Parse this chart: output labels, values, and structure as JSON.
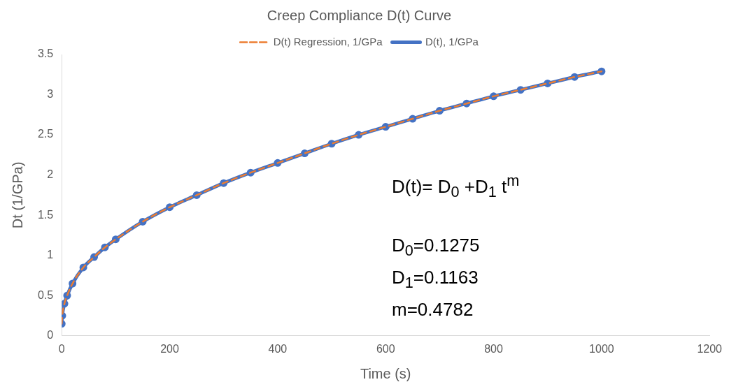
{
  "chart_data": {
    "type": "line",
    "title": "Creep Compliance D(t) Curve",
    "xlabel": "Time (s)",
    "ylabel": "Dt (1/GPa)",
    "x": [
      0,
      1,
      5,
      10,
      20,
      40,
      60,
      80,
      100,
      150,
      200,
      250,
      300,
      350,
      400,
      450,
      500,
      550,
      600,
      650,
      700,
      750,
      800,
      850,
      900,
      950,
      1000
    ],
    "series": [
      {
        "name": "D(t), 1/GPa",
        "color": "#4472c4",
        "marker": "circle",
        "line_style": "solid",
        "values": [
          0.15,
          0.25,
          0.4,
          0.5,
          0.65,
          0.85,
          0.98,
          1.1,
          1.2,
          1.42,
          1.6,
          1.75,
          1.9,
          2.03,
          2.15,
          2.27,
          2.39,
          2.5,
          2.6,
          2.7,
          2.8,
          2.89,
          2.98,
          3.06,
          3.14,
          3.22,
          3.29
        ]
      },
      {
        "name": "D(t) Regression, 1/GPa",
        "color": "#ed7d31",
        "marker": "none",
        "line_style": "dashed",
        "values": [
          0.15,
          0.25,
          0.4,
          0.5,
          0.65,
          0.85,
          0.98,
          1.1,
          1.2,
          1.42,
          1.6,
          1.75,
          1.9,
          2.03,
          2.15,
          2.27,
          2.39,
          2.5,
          2.6,
          2.7,
          2.8,
          2.89,
          2.98,
          3.06,
          3.14,
          3.22,
          3.29
        ]
      }
    ],
    "xlim": [
      0,
      1200
    ],
    "xticks": [
      0,
      200,
      400,
      600,
      800,
      1000,
      1200
    ],
    "ylim": [
      0,
      3.5
    ],
    "yticks": [
      0,
      0.5,
      1,
      1.5,
      2,
      2.5,
      3,
      3.5
    ],
    "grid": false,
    "legend": "top",
    "annotations": [
      "D(t)= D$_{0}$ +D$_{1}$ t$^{m}$",
      "D$_{0}$=0.1275",
      "D$_{1}$=0.1163",
      "m=0.4782"
    ]
  }
}
